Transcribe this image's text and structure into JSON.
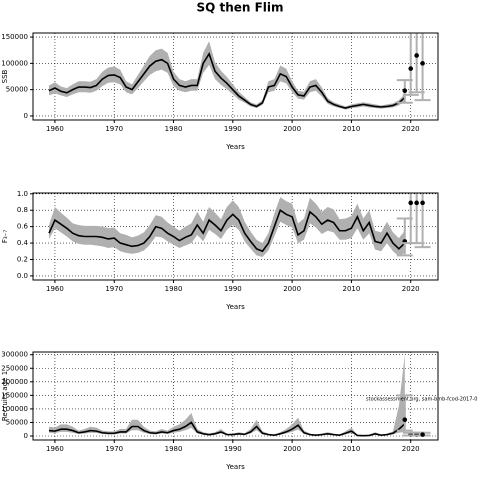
{
  "chart_data": [
    {
      "type": "line",
      "title": "SQ then Flim",
      "xlabel": "Years",
      "ylabel": "SSB",
      "x": [
        1959,
        1960,
        1961,
        1962,
        1963,
        1964,
        1965,
        1966,
        1967,
        1968,
        1969,
        1970,
        1971,
        1972,
        1973,
        1974,
        1975,
        1976,
        1977,
        1978,
        1979,
        1980,
        1981,
        1982,
        1983,
        1984,
        1985,
        1986,
        1987,
        1988,
        1989,
        1990,
        1991,
        1992,
        1993,
        1994,
        1995,
        1996,
        1997,
        1998,
        1999,
        2000,
        2001,
        2002,
        2003,
        2004,
        2005,
        2006,
        2007,
        2008,
        2009,
        2010,
        2011,
        2012,
        2013,
        2014,
        2015,
        2016,
        2017,
        2018,
        2019
      ],
      "values": [
        48000,
        53000,
        47000,
        44000,
        50000,
        55000,
        55000,
        54000,
        58000,
        70000,
        77000,
        78000,
        73000,
        55000,
        50000,
        65000,
        80000,
        95000,
        104000,
        107000,
        100000,
        70000,
        58000,
        55000,
        58000,
        58000,
        100000,
        118000,
        85000,
        72000,
        62000,
        50000,
        38000,
        30000,
        22000,
        18000,
        25000,
        55000,
        58000,
        80000,
        75000,
        55000,
        40000,
        38000,
        55000,
        58000,
        45000,
        28000,
        22000,
        18000,
        15000,
        18000,
        20000,
        22000,
        20000,
        18000,
        17000,
        18000,
        20000,
        25000,
        35000
      ],
      "lower": [
        39000,
        43000,
        39000,
        36000,
        41000,
        45000,
        45000,
        44000,
        48000,
        57000,
        63000,
        64000,
        60000,
        45000,
        41000,
        53000,
        66000,
        78000,
        85000,
        88000,
        82000,
        57000,
        48000,
        45000,
        48000,
        48000,
        82000,
        97000,
        70000,
        59000,
        51000,
        41000,
        31000,
        25000,
        18000,
        15000,
        21000,
        45000,
        48000,
        66000,
        62000,
        45000,
        33000,
        31000,
        45000,
        48000,
        37000,
        23000,
        18000,
        15000,
        12000,
        15000,
        16000,
        18000,
        16000,
        15000,
        14000,
        15000,
        16000,
        20000,
        28000
      ],
      "upper": [
        58000,
        64000,
        56000,
        53000,
        60000,
        66000,
        66000,
        65000,
        70000,
        84000,
        92000,
        94000,
        88000,
        66000,
        60000,
        78000,
        96000,
        114000,
        125000,
        128000,
        120000,
        84000,
        70000,
        66000,
        70000,
        70000,
        120000,
        142000,
        102000,
        86000,
        74000,
        60000,
        46000,
        36000,
        26000,
        22000,
        30000,
        66000,
        70000,
        96000,
        90000,
        66000,
        48000,
        46000,
        66000,
        70000,
        54000,
        34000,
        26000,
        22000,
        18000,
        22000,
        24000,
        26000,
        24000,
        22000,
        20000,
        22000,
        24000,
        30000,
        42000
      ],
      "forecast": {
        "x": [
          2019,
          2020,
          2021,
          2022
        ],
        "values": [
          48000,
          90000,
          115000,
          100000
        ],
        "lower": [
          25000,
          40000,
          45000,
          30000
        ],
        "upper": [
          68000,
          165000,
          170000,
          165000
        ]
      },
      "xlim": [
        1956.3,
        2024.6
      ],
      "xticks": [
        1960,
        1970,
        1980,
        1990,
        2000,
        2010,
        2020
      ],
      "ylim": [
        -7700,
        157700
      ],
      "yticks": [
        0,
        50000,
        100000,
        150000
      ],
      "grid": true,
      "color": "#000000",
      "band_color": "#b0b0b0"
    },
    {
      "type": "line",
      "xlabel": "Years",
      "ylabel": "F₃₋₇",
      "x": [
        1959,
        1960,
        1961,
        1962,
        1963,
        1964,
        1965,
        1966,
        1967,
        1968,
        1969,
        1970,
        1971,
        1972,
        1973,
        1974,
        1975,
        1976,
        1977,
        1978,
        1979,
        1980,
        1981,
        1982,
        1983,
        1984,
        1985,
        1986,
        1987,
        1988,
        1989,
        1990,
        1991,
        1992,
        1993,
        1994,
        1995,
        1996,
        1997,
        1998,
        1999,
        2000,
        2001,
        2002,
        2003,
        2004,
        2005,
        2006,
        2007,
        2008,
        2009,
        2010,
        2011,
        2012,
        2013,
        2014,
        2015,
        2016,
        2017,
        2018,
        2019
      ],
      "values": [
        0.52,
        0.68,
        0.63,
        0.58,
        0.52,
        0.49,
        0.48,
        0.48,
        0.48,
        0.47,
        0.45,
        0.46,
        0.4,
        0.38,
        0.36,
        0.37,
        0.4,
        0.48,
        0.6,
        0.58,
        0.52,
        0.48,
        0.43,
        0.47,
        0.5,
        0.62,
        0.52,
        0.68,
        0.62,
        0.55,
        0.68,
        0.75,
        0.68,
        0.52,
        0.42,
        0.33,
        0.3,
        0.4,
        0.6,
        0.8,
        0.75,
        0.72,
        0.5,
        0.55,
        0.78,
        0.72,
        0.63,
        0.68,
        0.65,
        0.55,
        0.55,
        0.58,
        0.72,
        0.55,
        0.65,
        0.42,
        0.4,
        0.52,
        0.4,
        0.33,
        0.4
      ],
      "lower": [
        0.45,
        0.58,
        0.53,
        0.48,
        0.42,
        0.39,
        0.38,
        0.38,
        0.37,
        0.36,
        0.34,
        0.35,
        0.3,
        0.28,
        0.27,
        0.28,
        0.31,
        0.38,
        0.48,
        0.47,
        0.42,
        0.38,
        0.34,
        0.37,
        0.4,
        0.5,
        0.42,
        0.56,
        0.51,
        0.45,
        0.56,
        0.62,
        0.56,
        0.42,
        0.33,
        0.25,
        0.23,
        0.31,
        0.48,
        0.66,
        0.62,
        0.59,
        0.4,
        0.44,
        0.64,
        0.59,
        0.51,
        0.55,
        0.53,
        0.44,
        0.44,
        0.46,
        0.58,
        0.44,
        0.52,
        0.32,
        0.3,
        0.4,
        0.3,
        0.24,
        0.28
      ],
      "upper": [
        0.62,
        0.84,
        0.77,
        0.71,
        0.64,
        0.62,
        0.61,
        0.61,
        0.61,
        0.6,
        0.58,
        0.59,
        0.52,
        0.5,
        0.47,
        0.49,
        0.53,
        0.62,
        0.74,
        0.72,
        0.65,
        0.6,
        0.55,
        0.6,
        0.64,
        0.78,
        0.66,
        0.84,
        0.77,
        0.69,
        0.84,
        0.92,
        0.84,
        0.66,
        0.54,
        0.44,
        0.4,
        0.52,
        0.76,
        0.96,
        0.91,
        0.88,
        0.64,
        0.7,
        0.95,
        0.88,
        0.78,
        0.84,
        0.81,
        0.69,
        0.7,
        0.73,
        0.88,
        0.7,
        0.8,
        0.55,
        0.53,
        0.66,
        0.53,
        0.46,
        0.55
      ],
      "forecast": {
        "x": [
          2019,
          2020,
          2021,
          2022
        ],
        "values": [
          0.42,
          0.89,
          0.89,
          0.89
        ],
        "lower": [
          0.25,
          0.4,
          0.4,
          0.35
        ],
        "upper": [
          0.7,
          1.05,
          1.05,
          1.05
        ]
      },
      "xlim": [
        1956.3,
        2024.6
      ],
      "xticks": [
        1960,
        1970,
        1980,
        1990,
        2000,
        2010,
        2020
      ],
      "ylim": [
        -0.05,
        1.01
      ],
      "yticks": [
        {
          "value": 0,
          "label": "0.0"
        },
        0.2,
        0.4,
        0.6,
        0.8,
        {
          "value": 1,
          "label": "1.0"
        }
      ],
      "grid": true,
      "color": "#000000",
      "band_color": "#b0b0b0"
    },
    {
      "type": "line",
      "xlabel": "Years",
      "ylabel": "Recruits age 1",
      "annotation": "stockassessment.org, sam-bmb-fcod-2017-0",
      "x": [
        1959,
        1960,
        1961,
        1962,
        1963,
        1964,
        1965,
        1966,
        1967,
        1968,
        1969,
        1970,
        1971,
        1972,
        1973,
        1974,
        1975,
        1976,
        1977,
        1978,
        1979,
        1980,
        1981,
        1982,
        1983,
        1984,
        1985,
        1986,
        1987,
        1988,
        1989,
        1990,
        1991,
        1992,
        1993,
        1994,
        1995,
        1996,
        1997,
        1998,
        1999,
        2000,
        2001,
        2002,
        2003,
        2004,
        2005,
        2006,
        2007,
        2008,
        2009,
        2010,
        2011,
        2012,
        2013,
        2014,
        2015,
        2016,
        2017,
        2018,
        2019
      ],
      "values": [
        20000,
        18000,
        25000,
        25000,
        20000,
        12000,
        15000,
        20000,
        18000,
        12000,
        10000,
        10000,
        15000,
        15000,
        35000,
        35000,
        20000,
        12000,
        10000,
        15000,
        12000,
        20000,
        25000,
        35000,
        50000,
        15000,
        8000,
        5000,
        8000,
        15000,
        5000,
        5000,
        8000,
        6000,
        15000,
        35000,
        10000,
        5000,
        3000,
        8000,
        15000,
        25000,
        40000,
        12000,
        5000,
        3000,
        5000,
        8000,
        5000,
        3000,
        10000,
        18000,
        2000,
        1000,
        2000,
        8000,
        3000,
        5000,
        10000,
        25000,
        45000
      ],
      "lower": [
        12000,
        11000,
        15000,
        15000,
        12000,
        7000,
        9000,
        12000,
        11000,
        7000,
        6000,
        6000,
        9000,
        9000,
        21000,
        21000,
        12000,
        7000,
        6000,
        9000,
        7000,
        12000,
        15000,
        21000,
        30000,
        9000,
        5000,
        3000,
        5000,
        9000,
        3000,
        3000,
        5000,
        4000,
        9000,
        21000,
        6000,
        3000,
        2000,
        5000,
        9000,
        15000,
        24000,
        7000,
        3000,
        2000,
        3000,
        5000,
        3000,
        2000,
        6000,
        11000,
        1000,
        1000,
        1000,
        5000,
        2000,
        3000,
        6000,
        12000,
        15000
      ],
      "upper": [
        34000,
        31000,
        43000,
        43000,
        34000,
        20000,
        26000,
        34000,
        31000,
        20000,
        17000,
        17000,
        26000,
        26000,
        60000,
        60000,
        34000,
        20000,
        17000,
        26000,
        20000,
        34000,
        43000,
        60000,
        85000,
        26000,
        14000,
        9000,
        14000,
        26000,
        9000,
        9000,
        14000,
        10000,
        26000,
        60000,
        17000,
        9000,
        5000,
        14000,
        26000,
        43000,
        68000,
        20000,
        9000,
        5000,
        9000,
        14000,
        9000,
        5000,
        17000,
        31000,
        4000,
        2000,
        4000,
        14000,
        5000,
        9000,
        17000,
        110000,
        300000
      ],
      "forecast": {
        "x": [
          2019,
          2020,
          2021,
          2022
        ],
        "values": [
          60000,
          5000,
          5000,
          5000
        ],
        "lower": [
          20000,
          2000,
          2000,
          2000
        ],
        "upper": [
          150000,
          12000,
          12000,
          12000
        ]
      },
      "xlim": [
        1956.3,
        2024.6
      ],
      "xticks": [
        1960,
        1970,
        1980,
        1990,
        2000,
        2010,
        2020
      ],
      "ylim": [
        -14800,
        310000
      ],
      "yticks": [
        0,
        50000,
        100000,
        150000,
        200000,
        250000,
        300000
      ],
      "grid": true,
      "color": "#000000",
      "band_color": "#b0b0b0"
    }
  ]
}
